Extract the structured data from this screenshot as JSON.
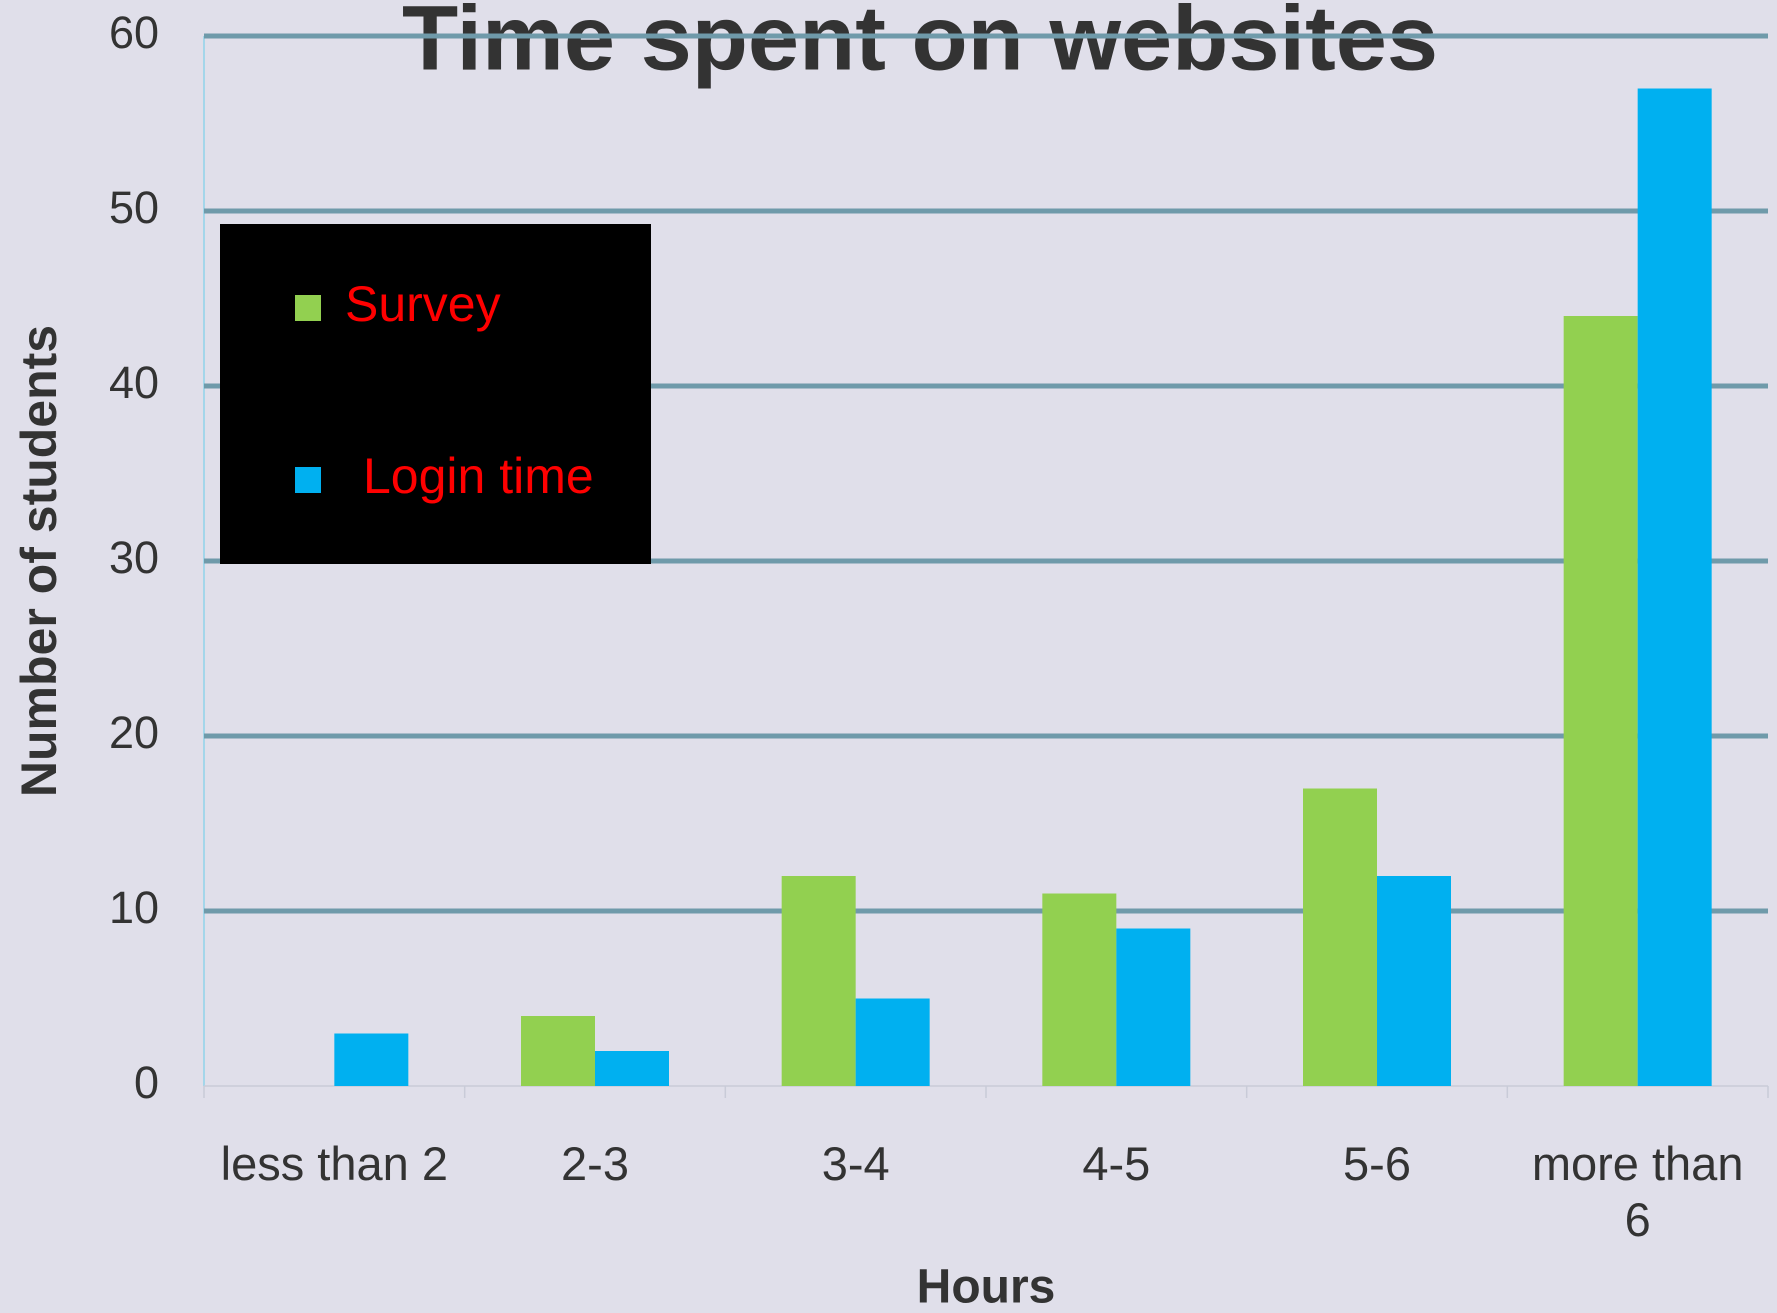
{
  "chart_data": {
    "type": "bar",
    "title": "Time spent on websites",
    "x_label": "Hours",
    "y_label": "Number of students",
    "categories": [
      "less than 2",
      "2-3",
      "3-4",
      "4-5",
      "5-6",
      "more than 6"
    ],
    "series": [
      {
        "name": "Survey",
        "color": "#92d050",
        "values": [
          0,
          4,
          12,
          11,
          17,
          44
        ]
      },
      {
        "name": "Login time",
        "color": "#00b0f0",
        "values": [
          3,
          2,
          5,
          9,
          12,
          57
        ]
      }
    ],
    "ylim": [
      0,
      60
    ],
    "yticks": [
      0,
      10,
      20,
      30,
      40,
      50,
      60
    ],
    "grid": true,
    "legend": "upper left"
  }
}
